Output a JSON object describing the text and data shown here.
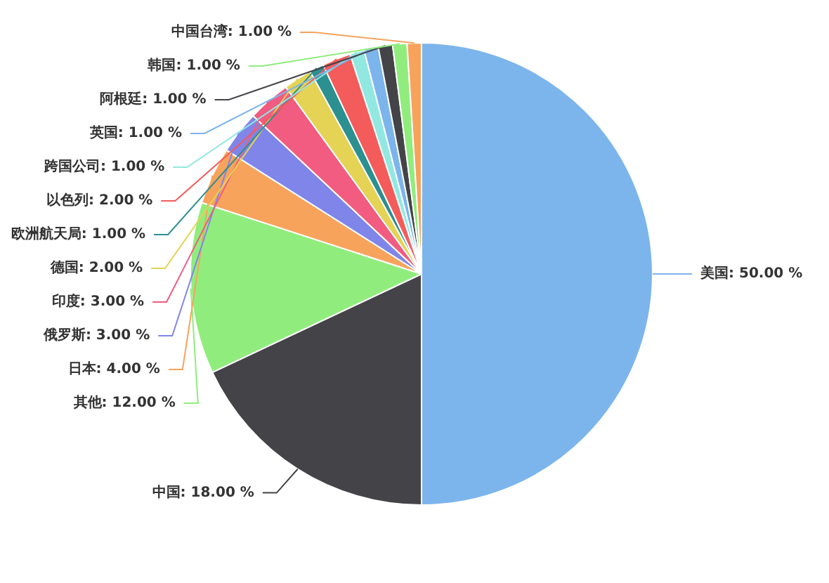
{
  "chart_data": {
    "type": "pie",
    "categories": [
      "美国",
      "中国",
      "其他",
      "日本",
      "俄罗斯",
      "印度",
      "德国",
      "欧洲航天局",
      "以色列",
      "跨国公司",
      "英国",
      "阿根廷",
      "韩国",
      "中国台湾"
    ],
    "values": [
      50,
      18,
      12,
      4,
      3,
      3,
      2,
      1,
      2,
      1,
      1,
      1,
      1,
      1
    ],
    "value_labels": [
      "50.00 %",
      "18.00 %",
      "12.00 %",
      "4.00 %",
      "3.00 %",
      "3.00 %",
      "2.00 %",
      "1.00 %",
      "2.00 %",
      "1.00 %",
      "1.00 %",
      "1.00 %",
      "1.00 %",
      "1.00 %"
    ],
    "colors": [
      "#7cb5ec",
      "#434348",
      "#90ed7d",
      "#f7a35c",
      "#8085e9",
      "#f15c80",
      "#e4d354",
      "#2b908f",
      "#f45b5b",
      "#91e8e1",
      "#7cb5ec",
      "#434348",
      "#90ed7d",
      "#f7a35c"
    ]
  }
}
